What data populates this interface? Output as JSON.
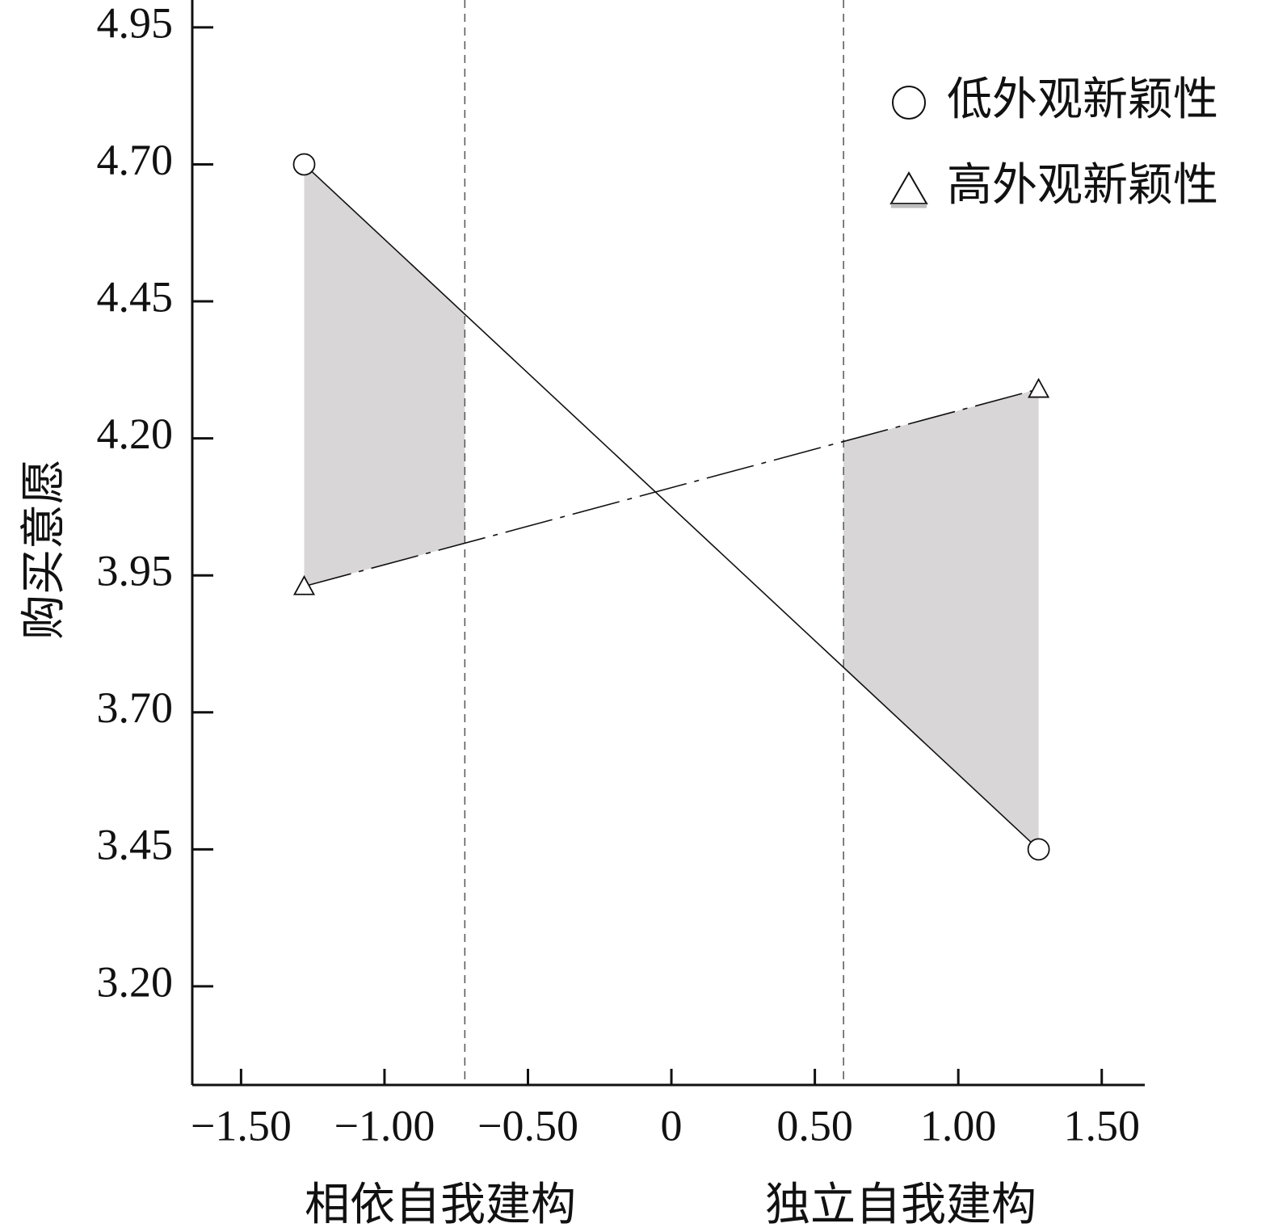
{
  "chart_data": {
    "type": "line",
    "title": "",
    "ylabel": "购买意愿",
    "xlabel_left": "相依自我建构",
    "xlabel_right": "独立自我建构",
    "xlim": [
      -1.67,
      1.65
    ],
    "ylim": [
      3.02,
      5.0
    ],
    "xticks": [
      -1.5,
      -1.0,
      -0.5,
      0,
      0.5,
      1.0,
      1.5
    ],
    "xtick_labels": [
      "−1.50",
      "−1.00",
      "−0.50",
      "0",
      "0.50",
      "1.00",
      "1.50"
    ],
    "yticks": [
      3.2,
      3.45,
      3.7,
      3.95,
      4.2,
      4.45,
      4.7,
      4.95
    ],
    "ytick_labels": [
      "3.20",
      "3.45",
      "3.70",
      "3.95",
      "4.20",
      "4.45",
      "4.70",
      "4.95"
    ],
    "grid": false,
    "legend_position": "top-right",
    "reference_lines_x": [
      -0.72,
      0.6
    ],
    "significance_regions": [
      {
        "from": -1.28,
        "to": -0.72
      },
      {
        "from": 0.6,
        "to": 1.28
      }
    ],
    "series": [
      {
        "name": "低外观新颖性",
        "marker": "circle",
        "line_style": "solid",
        "x": [
          -1.28,
          1.28
        ],
        "y": [
          4.7,
          3.45
        ]
      },
      {
        "name": "高外观新颖性",
        "marker": "triangle",
        "line_style": "dashdot",
        "x": [
          -1.28,
          1.28
        ],
        "y": [
          3.93,
          4.29
        ]
      }
    ],
    "colors": {
      "shade": "#d9d6d8",
      "line": "#111111",
      "reference": "#555555"
    }
  }
}
